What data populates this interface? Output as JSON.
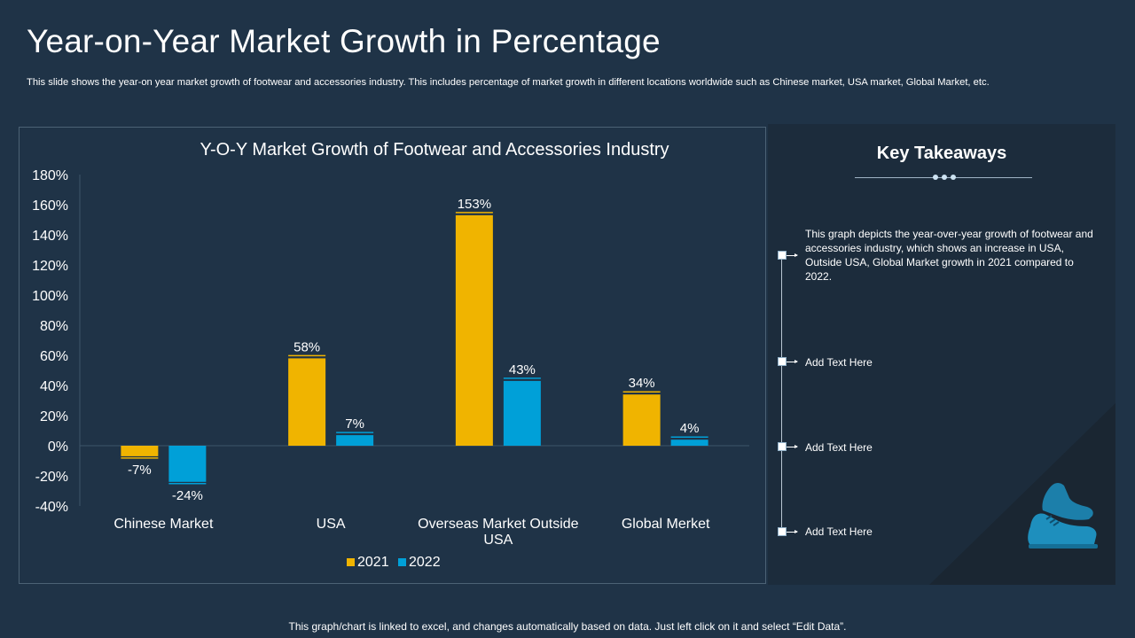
{
  "slide": {
    "title": "Year-on-Year Market Growth in Percentage",
    "subtitle": "This slide shows the year-on year  market growth of footwear and accessories industry. This includes percentage of market growth in different locations worldwide such as Chinese market, USA market, Global Market,  etc.",
    "footer": "This graph/chart is linked to excel, and changes automatically based on data. Just left click on it and select “Edit Data”."
  },
  "takeaways": {
    "title": "Key Takeaways",
    "items": [
      "This graph depicts the year-over-year  growth of footwear and accessories industry, which shows an increase in USA, Outside USA, Global Market growth in 2021 compared to 2022.",
      "Add Text Here",
      "Add Text Here",
      "Add Text Here"
    ],
    "icon": "shoe-icon"
  },
  "colors": {
    "series_2021": "#f0b400",
    "series_2022": "#00a0d8",
    "background": "#1f3347"
  },
  "chart_data": {
    "type": "bar",
    "title": "Y-O-Y Market Growth of Footwear and Accessories Industry",
    "categories": [
      "Chinese Market",
      "USA",
      "Overseas Market Outside USA",
      "Global Merket"
    ],
    "series": [
      {
        "name": "2021",
        "values": [
          -7,
          58,
          153,
          34
        ],
        "labels": [
          "-7%",
          "58%",
          "153%",
          "34%"
        ]
      },
      {
        "name": "2022",
        "values": [
          -24,
          7,
          43,
          4
        ],
        "labels": [
          "-24%",
          "7%",
          "43%",
          "4%"
        ]
      }
    ],
    "ylim": [
      -40,
      180
    ],
    "yticks": [
      180,
      160,
      140,
      120,
      100,
      80,
      60,
      40,
      20,
      0,
      -20,
      -40
    ],
    "ytick_labels": [
      "180%",
      "160%",
      "140%",
      "120%",
      "100%",
      "80%",
      "60%",
      "40%",
      "20%",
      "0%",
      "-20%",
      "-40%"
    ],
    "xlabel": "",
    "ylabel": "",
    "legend": "bottom-center",
    "grid": false
  }
}
